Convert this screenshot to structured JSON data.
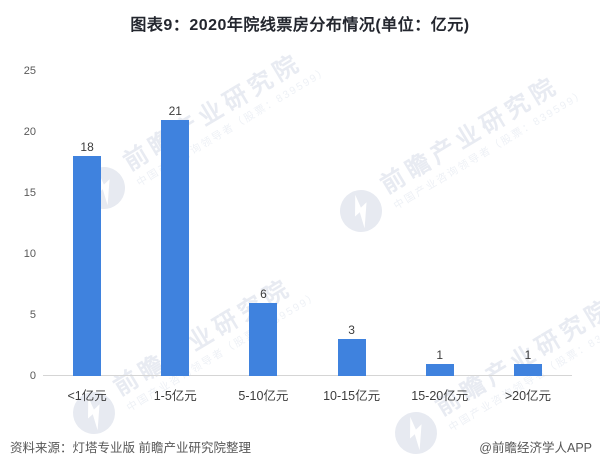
{
  "title": "图表9：2020年院线票房分布情况(单位：亿元)",
  "chart_data": {
    "type": "bar",
    "title": "图表9：2020年院线票房分布情况(单位：亿元)",
    "categories": [
      "<1亿元",
      "1-5亿元",
      "5-10亿元",
      "10-15亿元",
      "15-20亿元",
      ">20亿元"
    ],
    "values": [
      18,
      21,
      6,
      3,
      1,
      1
    ],
    "xlabel": "",
    "ylabel": "",
    "ylim": [
      0,
      25
    ],
    "yticks": [
      0,
      5,
      10,
      15,
      20,
      25
    ],
    "grid": false,
    "legend": "none",
    "bar_color": "#3f82de",
    "data_labels": true
  },
  "watermark": {
    "brand": "前瞻产业研究院",
    "tagline": "中国产业咨询领导者（股票：839599）"
  },
  "footer": {
    "source": "资料来源：灯塔专业版 前瞻产业研究院整理",
    "credit": "@前瞻经济学人APP"
  },
  "colors": {
    "bar": "#3f82de",
    "title_text": "#23262e",
    "axis_line": "#d5d5d5",
    "tick_text": "#595959",
    "label_text": "#3c3c3c",
    "footer_text": "#575757",
    "watermark_text": "#e8ebf2",
    "watermark_logo": "#e7eaf1"
  }
}
